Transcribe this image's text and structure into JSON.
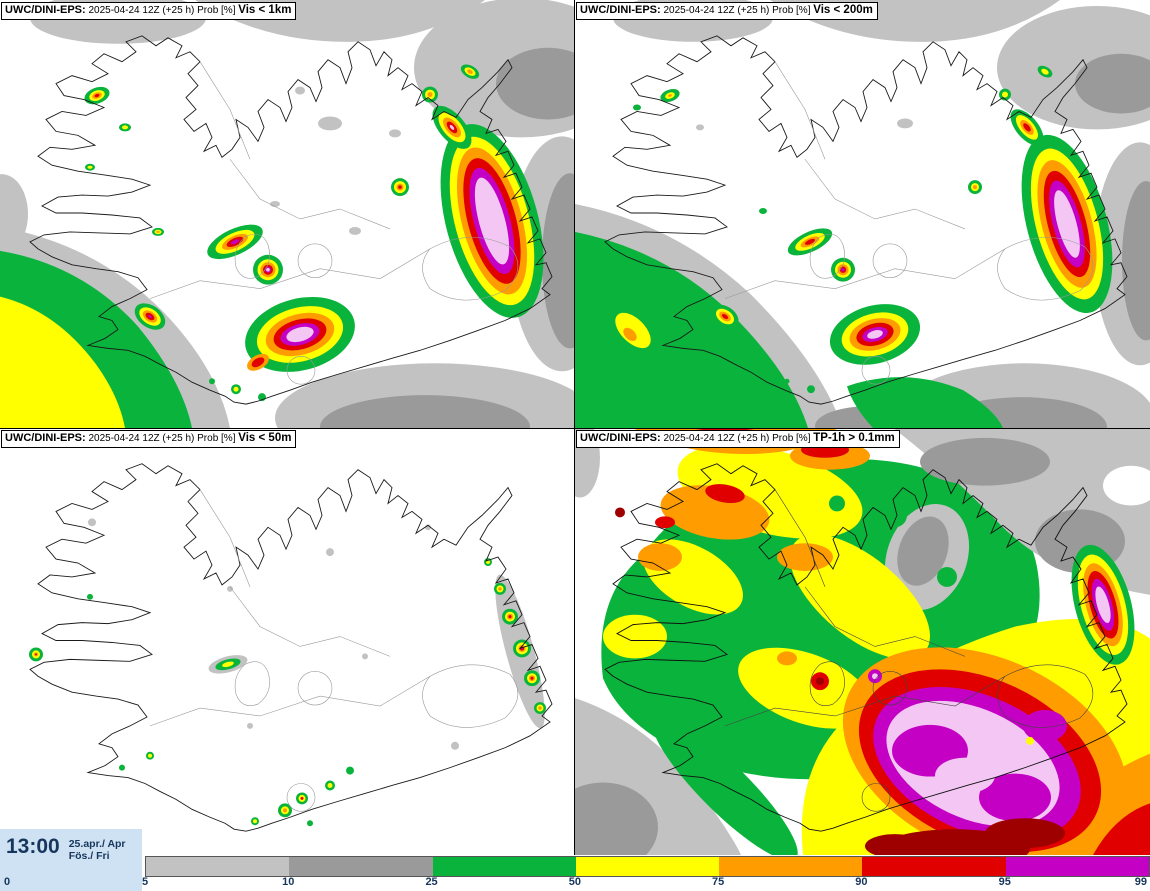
{
  "panels": [
    {
      "model": "UWC/DINI-EPS:",
      "info": " 2025-04-24 12Z (+25 h) Prob [%] ",
      "threshold": "Vis < 1km"
    },
    {
      "model": "UWC/DINI-EPS:",
      "info": " 2025-04-24 12Z (+25 h) Prob [%] ",
      "threshold": "Vis < 200m"
    },
    {
      "model": "UWC/DINI-EPS:",
      "info": " 2025-04-24 12Z (+25 h) Prob [%] ",
      "threshold": "Vis < 50m"
    },
    {
      "model": "UWC/DINI-EPS:",
      "info": " 2025-04-24 12Z (+25 h) Prob [%] ",
      "threshold": "TP-1h > 0.1mm"
    }
  ],
  "clock": {
    "time": "13:00",
    "date_month": "25.apr./ Apr",
    "date_day": "Fös./ Fri"
  },
  "legend": {
    "unit": "Probability [%]",
    "ticks": [
      "0",
      "5",
      "10",
      "25",
      "50",
      "75",
      "90",
      "95",
      "99"
    ],
    "segments": [
      {
        "from": 5,
        "to": 10,
        "color": "#c2c2c2"
      },
      {
        "from": 10,
        "to": 25,
        "color": "#9a9a9a"
      },
      {
        "from": 25,
        "to": 50,
        "color": "#0ab43c"
      },
      {
        "from": 50,
        "to": 75,
        "color": "#ffff00"
      },
      {
        "from": 75,
        "to": 90,
        "color": "#ff9c00"
      },
      {
        "from": 90,
        "to": 95,
        "color": "#e00000"
      },
      {
        "from": 95,
        "to": 99,
        "color": "#c400c4"
      }
    ]
  },
  "colors": {
    "gray_low": "#c2c2c2",
    "gray_mid": "#9a9a9a",
    "green": "#0ab43c",
    "yellow": "#ffff00",
    "orange": "#ff9c00",
    "red": "#e00000",
    "magenta": "#c400c4",
    "pink_high": "#f3c6f3",
    "dark_red": "#9e0000",
    "panel_bg": "#ffffff",
    "clock_bg": "#cfe2f3",
    "label_navy": "#17365d"
  }
}
